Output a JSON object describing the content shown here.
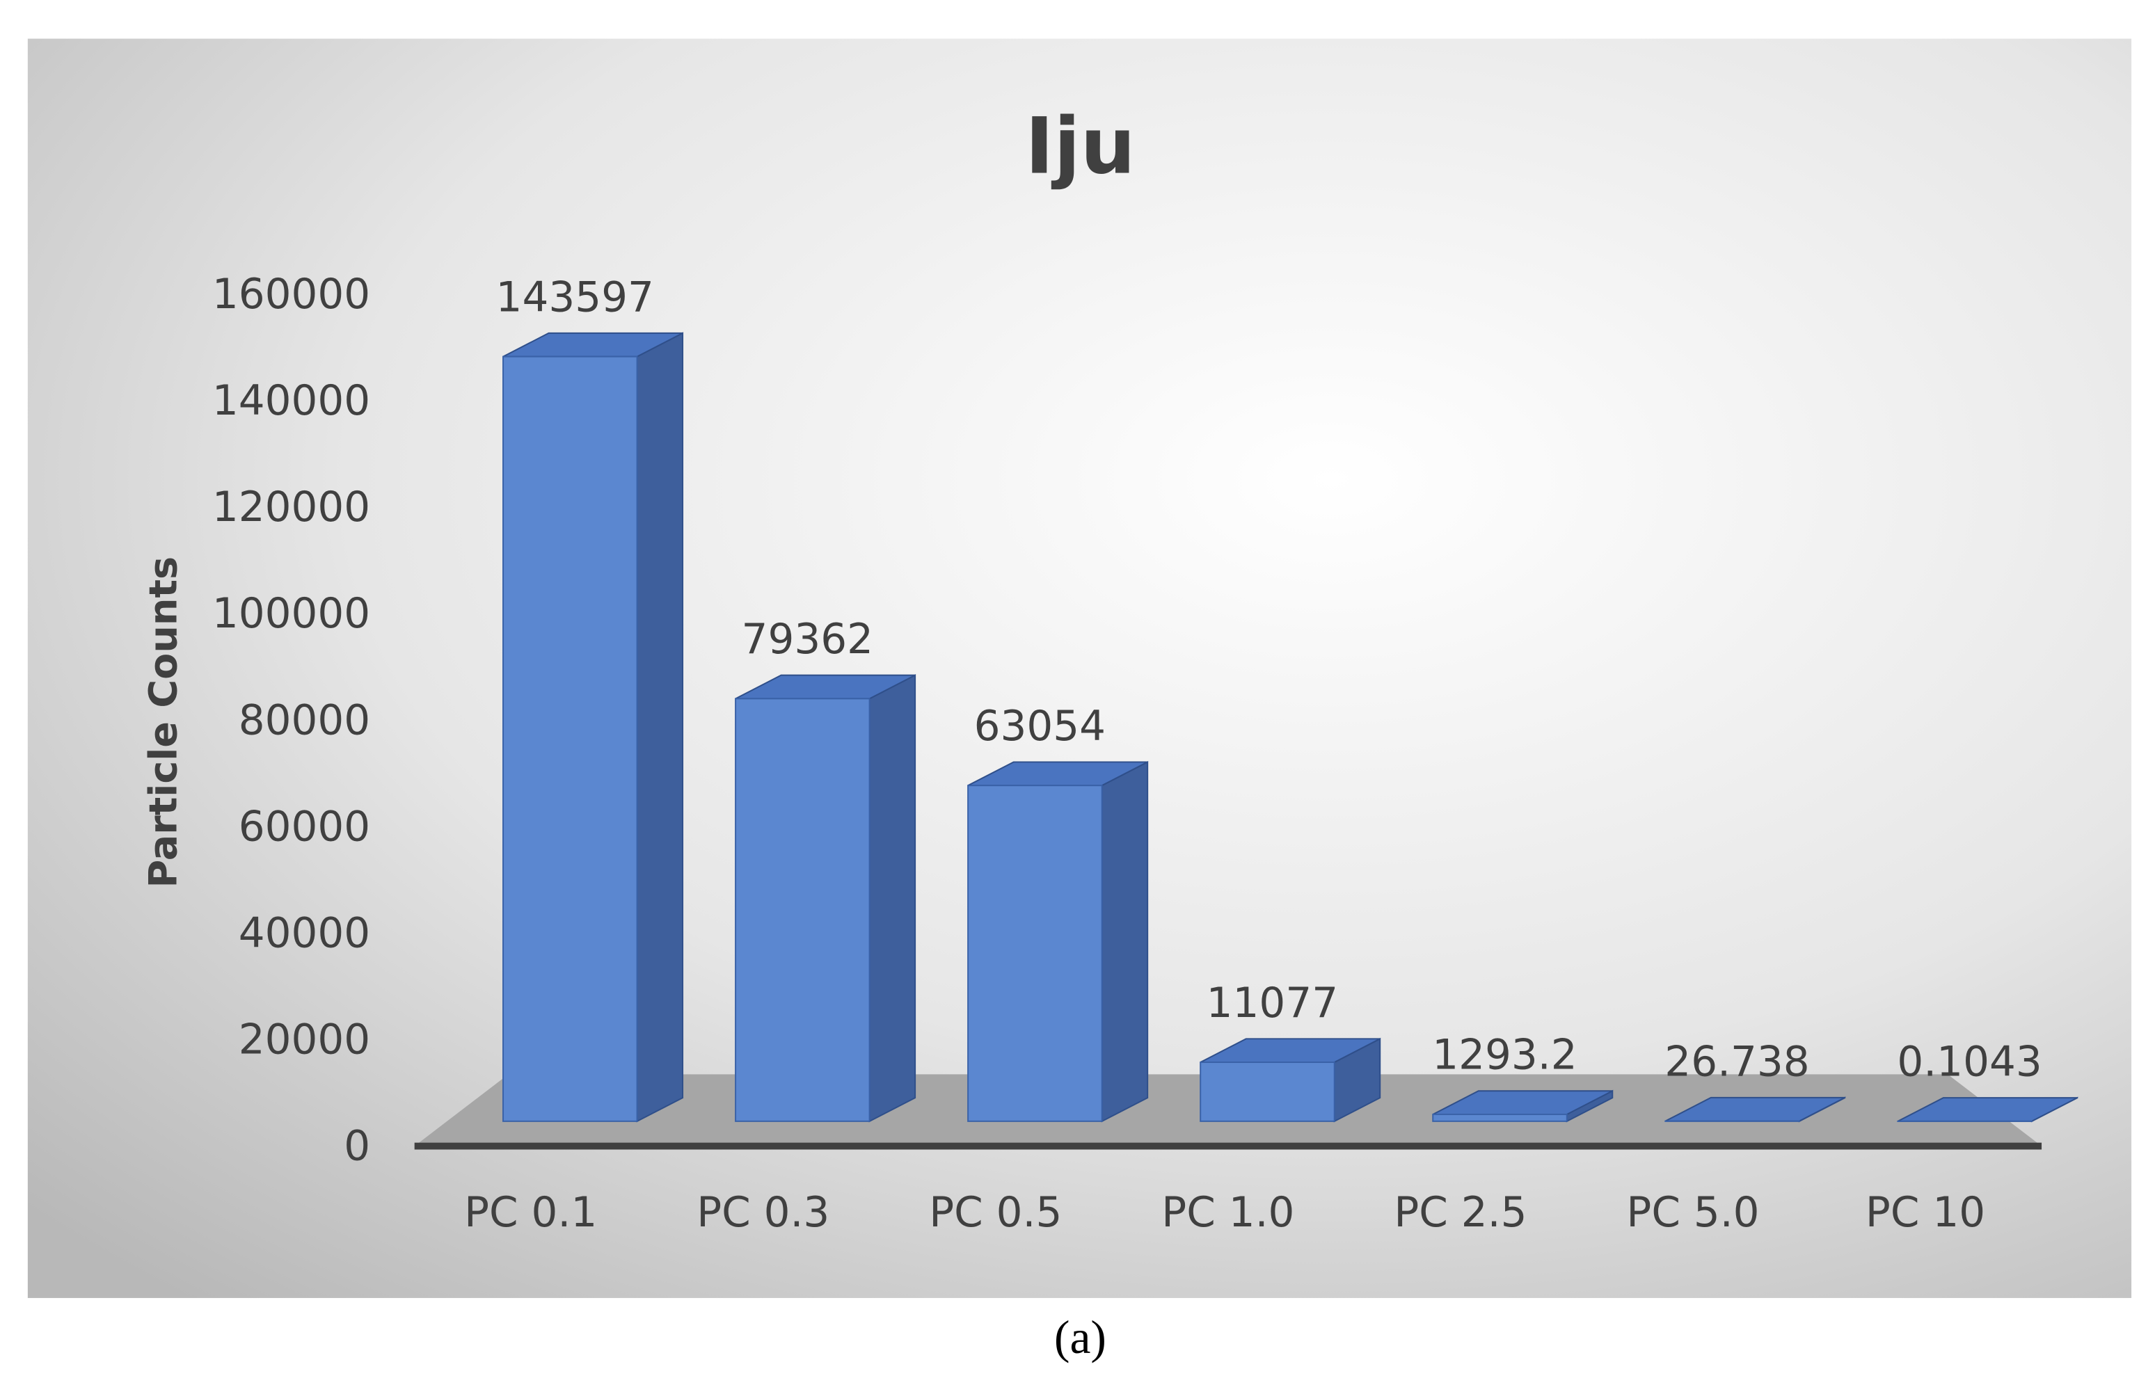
{
  "chart_data": {
    "type": "bar3d",
    "title": "Iju",
    "y_label": "Particle Counts",
    "categories": [
      "PC 0.1",
      "PC 0.3",
      "PC 0.5",
      "PC 1.0",
      "PC 2.5",
      "PC 5.0",
      "PC 10"
    ],
    "values": [
      143597,
      79362,
      63054,
      11077,
      1293.2,
      26.738,
      0.1043
    ],
    "color": "#5b87d0",
    "ylim": [
      0,
      160000
    ],
    "yticks": [
      0,
      20000,
      40000,
      60000,
      80000,
      100000,
      120000,
      140000,
      160000
    ],
    "grid": false
  },
  "caption": "(a)"
}
